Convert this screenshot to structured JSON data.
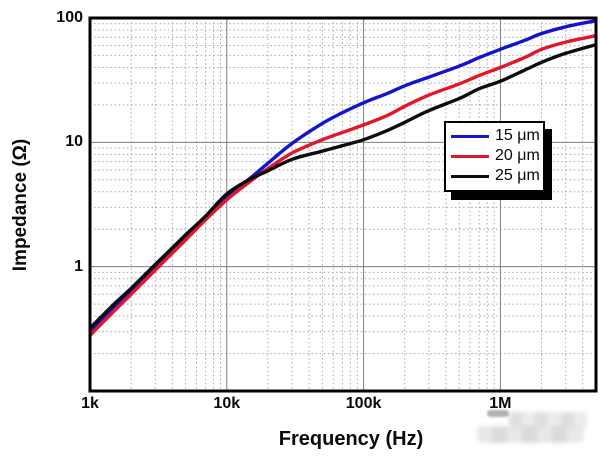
{
  "chart_data": {
    "type": "line",
    "title": "",
    "xlabel": "Frequency (Hz)",
    "ylabel": "Impedance (Ω)",
    "x_scale": "log",
    "y_scale": "log",
    "xlim": [
      1000,
      5000000
    ],
    "ylim": [
      0.1,
      100
    ],
    "grid": "major-solid-gray, minor-dotted-gray",
    "legend_position": "inside-upper-right",
    "x_ticks": [
      {
        "value": 1000,
        "label": "1k"
      },
      {
        "value": 10000,
        "label": "10k"
      },
      {
        "value": 100000,
        "label": "100k"
      },
      {
        "value": 1000000,
        "label": "1M"
      }
    ],
    "y_ticks": [
      {
        "value": 100,
        "label": "100"
      },
      {
        "value": 10,
        "label": "10"
      },
      {
        "value": 1,
        "label": "1"
      }
    ],
    "x": [
      1000,
      1500,
      2000,
      3000,
      5000,
      7000,
      10000,
      15000,
      20000,
      30000,
      50000,
      70000,
      100000,
      150000,
      200000,
      300000,
      500000,
      700000,
      1000000,
      1500000,
      2000000,
      3000000,
      5000000
    ],
    "series": [
      {
        "name": "15 μm",
        "color": "#1414cc",
        "values": [
          0.3,
          0.47,
          0.64,
          1.0,
          1.73,
          2.5,
          3.65,
          5.2,
          6.8,
          9.8,
          14.2,
          17.3,
          20.8,
          24.8,
          28.5,
          33.5,
          41.0,
          48.0,
          56.0,
          66.0,
          75.0,
          85.0,
          95.0
        ]
      },
      {
        "name": "20 μm",
        "color": "#e3172a",
        "values": [
          0.28,
          0.44,
          0.6,
          0.94,
          1.64,
          2.38,
          3.45,
          4.9,
          6.15,
          8.2,
          10.5,
          12.0,
          13.8,
          16.5,
          19.5,
          24.0,
          29.5,
          34.5,
          40.0,
          48.0,
          56.0,
          64.0,
          72.0
        ]
      },
      {
        "name": "25 μm",
        "color": "#0d0d0d",
        "values": [
          0.32,
          0.5,
          0.67,
          1.04,
          1.8,
          2.55,
          3.85,
          5.1,
          5.9,
          7.3,
          8.5,
          9.4,
          10.5,
          12.5,
          14.5,
          18.0,
          22.5,
          27.0,
          31.0,
          38.0,
          44.0,
          52.0,
          61.0
        ]
      }
    ]
  },
  "style_colors": {
    "background": "#ffffff",
    "plot_border": "#000000",
    "major_grid": "#7d7d7d",
    "minor_grid": "#a8a8a8",
    "text": "#0a0a0a",
    "legend_shadow": "#000000"
  },
  "watermark": {
    "present": "blurred-gray-mosaic-bottom-right"
  }
}
